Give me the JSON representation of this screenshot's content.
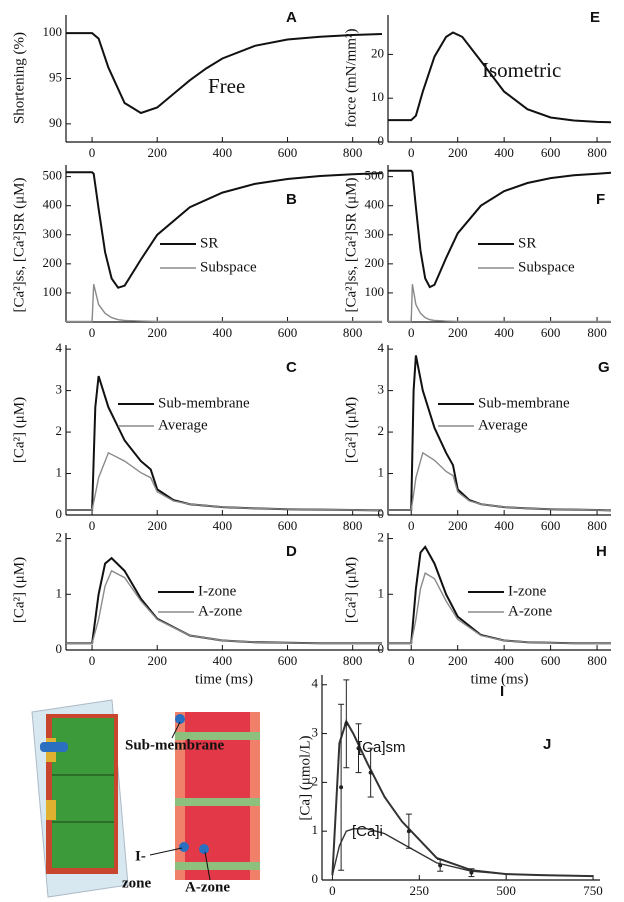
{
  "chart_data": [
    {
      "type": "line",
      "panel": "A",
      "annotation": "Free",
      "ylabel": "Shortening (%)",
      "xlim": [
        -80,
        890
      ],
      "ylim": [
        88,
        102
      ],
      "xticks": [
        0,
        200,
        400,
        600,
        800
      ],
      "yticks": [
        90,
        95,
        100
      ],
      "x": [
        -80,
        0,
        20,
        50,
        100,
        150,
        200,
        250,
        300,
        350,
        400,
        500,
        600,
        700,
        800,
        890
      ],
      "series": [
        {
          "color": "#111111",
          "values": [
            100,
            100,
            99.4,
            96.2,
            92.3,
            91.2,
            91.8,
            93.3,
            94.8,
            96.1,
            97.2,
            98.6,
            99.3,
            99.6,
            99.8,
            99.9
          ]
        }
      ]
    },
    {
      "type": "line",
      "panel": "E",
      "annotation": "Isometric",
      "ylabel": "force (mN/mm²)",
      "xlim": [
        -100,
        860
      ],
      "ylim": [
        0,
        29
      ],
      "xticks": [
        0,
        200,
        400,
        600,
        800
      ],
      "yticks": [
        0,
        10,
        20
      ],
      "x": [
        -100,
        0,
        20,
        50,
        100,
        150,
        180,
        220,
        300,
        400,
        500,
        600,
        700,
        800,
        860
      ],
      "series": [
        {
          "color": "#111111",
          "values": [
            5,
            5,
            6,
            11.5,
            19.5,
            24,
            25,
            24,
            18.5,
            11.5,
            7.5,
            5.6,
            4.9,
            4.6,
            4.5
          ]
        }
      ]
    },
    {
      "type": "line",
      "panel": "B",
      "ylabel": "[Ca²]ss, [Ca²]SR (μM)",
      "xlim": [
        -80,
        890
      ],
      "ylim": [
        0,
        540
      ],
      "xticks": [
        0,
        200,
        400,
        600,
        800
      ],
      "yticks": [
        100,
        200,
        300,
        400,
        500
      ],
      "x": [
        -80,
        0,
        5,
        20,
        40,
        60,
        80,
        100,
        150,
        200,
        300,
        400,
        500,
        600,
        700,
        800,
        890
      ],
      "series": [
        {
          "name": "SR",
          "color": "#111111",
          "values": [
            515,
            515,
            510,
            390,
            240,
            150,
            118,
            125,
            215,
            300,
            395,
            445,
            475,
            492,
            502,
            508,
            512
          ]
        },
        {
          "name": "Subspace",
          "color": "#8a8a8a",
          "values": [
            2,
            2,
            130,
            60,
            30,
            15,
            8,
            5,
            3,
            2,
            2,
            2,
            2,
            2,
            2,
            2,
            2
          ]
        }
      ]
    },
    {
      "type": "line",
      "panel": "F",
      "ylabel": "[Ca²]ss, [Ca²]SR (μM)",
      "xlim": [
        -100,
        860
      ],
      "ylim": [
        0,
        540
      ],
      "xticks": [
        0,
        200,
        400,
        600,
        800
      ],
      "yticks": [
        100,
        200,
        300,
        400,
        500
      ],
      "x": [
        -100,
        0,
        5,
        20,
        40,
        60,
        80,
        100,
        150,
        200,
        300,
        400,
        500,
        600,
        700,
        800,
        860
      ],
      "series": [
        {
          "name": "SR",
          "color": "#111111",
          "values": [
            520,
            520,
            515,
            395,
            245,
            150,
            120,
            128,
            220,
            305,
            400,
            450,
            478,
            495,
            505,
            510,
            513
          ]
        },
        {
          "name": "Subspace",
          "color": "#8a8a8a",
          "values": [
            2,
            2,
            130,
            60,
            30,
            15,
            8,
            5,
            3,
            2,
            2,
            2,
            2,
            2,
            2,
            2,
            2
          ]
        }
      ]
    },
    {
      "type": "line",
      "panel": "C",
      "ylabel": "[Ca²] (μM)",
      "xlim": [
        -80,
        890
      ],
      "ylim": [
        0,
        4.1
      ],
      "xticks": [
        0,
        200,
        400,
        600,
        800
      ],
      "yticks": [
        0,
        1,
        2,
        3,
        4
      ],
      "x": [
        -80,
        0,
        10,
        20,
        50,
        100,
        150,
        180,
        200,
        250,
        300,
        400,
        500,
        600,
        700,
        800,
        890
      ],
      "series": [
        {
          "name": "Sub-membrane",
          "color": "#111111",
          "values": [
            0.12,
            0.12,
            2.6,
            3.35,
            2.6,
            1.8,
            1.3,
            1.1,
            0.62,
            0.36,
            0.26,
            0.19,
            0.16,
            0.14,
            0.13,
            0.12,
            0.11
          ]
        },
        {
          "name": "Average",
          "color": "#8a8a8a",
          "values": [
            0.12,
            0.12,
            0.5,
            0.9,
            1.5,
            1.3,
            1.02,
            0.9,
            0.56,
            0.34,
            0.26,
            0.19,
            0.16,
            0.14,
            0.13,
            0.12,
            0.11
          ]
        }
      ]
    },
    {
      "type": "line",
      "panel": "G",
      "ylabel": "[Ca²] (μM)",
      "xlim": [
        -100,
        860
      ],
      "ylim": [
        0,
        4.1
      ],
      "xticks": [
        0,
        200,
        400,
        600,
        800
      ],
      "yticks": [
        0,
        1,
        2,
        3,
        4
      ],
      "x": [
        -100,
        0,
        10,
        20,
        50,
        100,
        150,
        180,
        200,
        250,
        300,
        400,
        500,
        600,
        700,
        800,
        860
      ],
      "series": [
        {
          "name": "Sub-membrane",
          "color": "#111111",
          "values": [
            0.12,
            0.12,
            3.0,
            3.85,
            3.0,
            2.1,
            1.5,
            1.2,
            0.62,
            0.36,
            0.26,
            0.19,
            0.16,
            0.14,
            0.13,
            0.12,
            0.11
          ]
        },
        {
          "name": "Average",
          "color": "#8a8a8a",
          "values": [
            0.12,
            0.12,
            0.5,
            0.9,
            1.5,
            1.32,
            1.05,
            0.95,
            0.56,
            0.34,
            0.26,
            0.19,
            0.16,
            0.14,
            0.13,
            0.12,
            0.11
          ]
        }
      ]
    },
    {
      "type": "line",
      "panel": "D",
      "ylabel": "[Ca²] (μM)",
      "xlabel": "time (ms)",
      "xlim": [
        -80,
        890
      ],
      "ylim": [
        0,
        2.1
      ],
      "xticks": [
        0,
        200,
        400,
        600,
        800
      ],
      "yticks": [
        0,
        1,
        2
      ],
      "x": [
        -80,
        0,
        20,
        40,
        60,
        100,
        150,
        200,
        300,
        400,
        500,
        600,
        700,
        800,
        890
      ],
      "series": [
        {
          "name": "I-zone",
          "color": "#111111",
          "values": [
            0.12,
            0.12,
            1.0,
            1.55,
            1.65,
            1.42,
            0.92,
            0.56,
            0.26,
            0.17,
            0.14,
            0.13,
            0.12,
            0.12,
            0.12
          ]
        },
        {
          "name": "A-zone",
          "color": "#8a8a8a",
          "values": [
            0.12,
            0.12,
            0.55,
            1.15,
            1.42,
            1.3,
            0.88,
            0.55,
            0.26,
            0.17,
            0.14,
            0.13,
            0.12,
            0.12,
            0.12
          ]
        }
      ]
    },
    {
      "type": "line",
      "panel": "H",
      "ylabel": "[Ca²] (μM)",
      "xlabel": "time (ms)",
      "xlim": [
        -100,
        860
      ],
      "ylim": [
        0,
        2.1
      ],
      "xticks": [
        0,
        200,
        400,
        600,
        800
      ],
      "yticks": [
        0,
        1,
        2
      ],
      "x": [
        -100,
        0,
        20,
        40,
        60,
        100,
        150,
        200,
        300,
        400,
        500,
        600,
        700,
        800,
        860
      ],
      "series": [
        {
          "name": "I-zone",
          "color": "#111111",
          "values": [
            0.12,
            0.12,
            1.1,
            1.75,
            1.85,
            1.55,
            1.0,
            0.6,
            0.27,
            0.17,
            0.14,
            0.13,
            0.12,
            0.12,
            0.12
          ]
        },
        {
          "name": "A-zone",
          "color": "#8a8a8a",
          "values": [
            0.12,
            0.12,
            0.55,
            1.1,
            1.38,
            1.28,
            0.88,
            0.55,
            0.26,
            0.17,
            0.14,
            0.13,
            0.12,
            0.12,
            0.12
          ]
        }
      ]
    },
    {
      "type": "line",
      "panel": "J",
      "ylabel": "[Ca] (μmol/L)",
      "xlim": [
        -30,
        770
      ],
      "ylim": [
        0,
        4.2
      ],
      "xticks": [
        0,
        250,
        500,
        750
      ],
      "yticks": [
        0,
        1,
        2,
        3,
        4
      ],
      "x": [
        0,
        20,
        40,
        60,
        100,
        150,
        200,
        300,
        400,
        500,
        600,
        750
      ],
      "series": [
        {
          "name": "[Ca]sm",
          "color": "#333333",
          "values": [
            0.1,
            2.8,
            3.25,
            3.0,
            2.4,
            1.7,
            1.2,
            0.45,
            0.2,
            0.12,
            0.1,
            0.08
          ]
        },
        {
          "name": "[Ca]i",
          "color": "#333333",
          "values": [
            0.1,
            0.7,
            1.0,
            1.05,
            1.05,
            0.95,
            0.75,
            0.35,
            0.18,
            0.12,
            0.1,
            0.08
          ]
        }
      ],
      "errorbars": {
        "x": [
          25,
          40,
          75,
          110,
          220,
          310,
          400
        ],
        "values": [
          1.9,
          3.2,
          2.7,
          2.2,
          1.0,
          0.3,
          0.15
        ],
        "errors": [
          1.7,
          0.9,
          0.5,
          0.5,
          0.35,
          0.12,
          0.08
        ]
      }
    }
  ],
  "diagram": {
    "label": "I",
    "labels": [
      "Sub-membrane",
      "I-",
      "zone",
      "A-zone"
    ]
  }
}
